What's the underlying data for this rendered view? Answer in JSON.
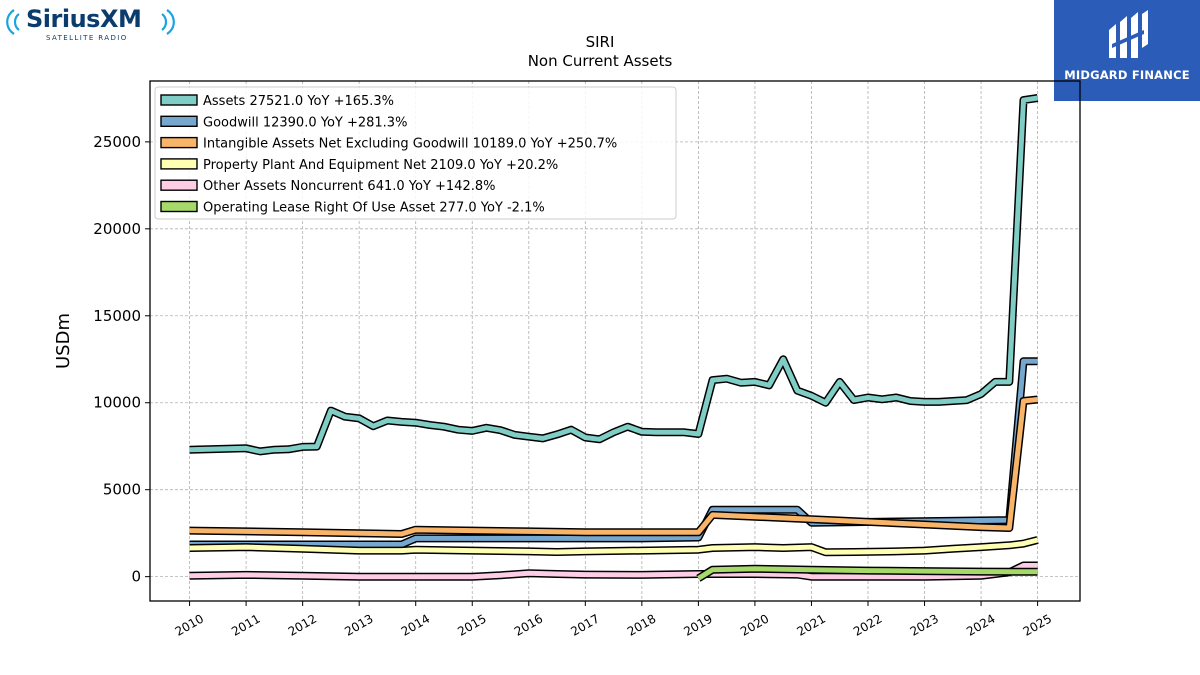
{
  "logos": {
    "left": {
      "brand": "SiriusXM",
      "tagline": "SATELLITE RADIO",
      "color": "#0a3d6e",
      "wave_color": "#1aa3e0"
    },
    "right": {
      "name": "MIDGARD FINANCE",
      "bg_color": "#2b5cb8"
    }
  },
  "chart_data": {
    "type": "line",
    "title": "SIRI",
    "subtitle": "Non Current  Assets",
    "ylabel": "USDm",
    "xlabel": "",
    "ylim": [
      -1400,
      28500
    ],
    "xlim": [
      2009.3,
      2025.75
    ],
    "x_ticks": [
      2010,
      2011,
      2012,
      2013,
      2014,
      2015,
      2016,
      2017,
      2018,
      2019,
      2020,
      2021,
      2022,
      2023,
      2024,
      2025
    ],
    "y_ticks": [
      0,
      5000,
      10000,
      15000,
      20000,
      25000
    ],
    "grid": true,
    "legend_placement": "upper-left",
    "series": [
      {
        "name": "Assets",
        "legend_label": "Assets  27521.0 YoY +165.3%",
        "color": "#7fcdc4",
        "points": [
          [
            2010.0,
            7300
          ],
          [
            2011.0,
            7380
          ],
          [
            2011.25,
            7200
          ],
          [
            2011.5,
            7300
          ],
          [
            2011.75,
            7320
          ],
          [
            2012.0,
            7460
          ],
          [
            2012.25,
            7480
          ],
          [
            2012.5,
            9550
          ],
          [
            2012.75,
            9200
          ],
          [
            2013.0,
            9100
          ],
          [
            2013.25,
            8650
          ],
          [
            2013.5,
            8980
          ],
          [
            2013.75,
            8900
          ],
          [
            2014.0,
            8850
          ],
          [
            2014.25,
            8720
          ],
          [
            2014.5,
            8620
          ],
          [
            2014.75,
            8450
          ],
          [
            2015.0,
            8380
          ],
          [
            2015.25,
            8560
          ],
          [
            2015.5,
            8420
          ],
          [
            2015.75,
            8150
          ],
          [
            2016.0,
            8050
          ],
          [
            2016.25,
            7950
          ],
          [
            2016.5,
            8180
          ],
          [
            2016.75,
            8450
          ],
          [
            2017.0,
            8000
          ],
          [
            2017.25,
            7900
          ],
          [
            2017.5,
            8300
          ],
          [
            2017.75,
            8620
          ],
          [
            2018.0,
            8330
          ],
          [
            2018.25,
            8300
          ],
          [
            2018.5,
            8300
          ],
          [
            2018.75,
            8300
          ],
          [
            2019.0,
            8200
          ],
          [
            2019.25,
            11300
          ],
          [
            2019.5,
            11380
          ],
          [
            2019.75,
            11150
          ],
          [
            2020.0,
            11200
          ],
          [
            2020.25,
            11000
          ],
          [
            2020.5,
            12500
          ],
          [
            2020.75,
            10700
          ],
          [
            2021.0,
            10400
          ],
          [
            2021.25,
            10000
          ],
          [
            2021.5,
            11200
          ],
          [
            2021.75,
            10150
          ],
          [
            2022.0,
            10300
          ],
          [
            2022.25,
            10200
          ],
          [
            2022.5,
            10300
          ],
          [
            2022.75,
            10100
          ],
          [
            2023.0,
            10050
          ],
          [
            2023.25,
            10050
          ],
          [
            2023.5,
            10100
          ],
          [
            2023.75,
            10150
          ],
          [
            2024.0,
            10500
          ],
          [
            2024.25,
            11200
          ],
          [
            2024.5,
            11200
          ],
          [
            2024.75,
            27400
          ],
          [
            2025.0,
            27521
          ]
        ]
      },
      {
        "name": "Goodwill",
        "legend_label": "Goodwill  12390.0 YoY +281.3%",
        "color": "#75a7cf",
        "points": [
          [
            2010.0,
            1850
          ],
          [
            2013.75,
            1850
          ],
          [
            2014.0,
            2200
          ],
          [
            2016.0,
            2200
          ],
          [
            2018.0,
            2200
          ],
          [
            2019.0,
            2250
          ],
          [
            2019.25,
            3850
          ],
          [
            2020.75,
            3850
          ],
          [
            2021.0,
            3100
          ],
          [
            2024.5,
            3250
          ],
          [
            2024.75,
            12390
          ],
          [
            2025.0,
            12390
          ]
        ]
      },
      {
        "name": "Intangible Assets Net Excluding Goodwill",
        "legend_label": "Intangible Assets Net Excluding Goodwill  10189.0 YoY +250.7%",
        "color": "#f8b468",
        "points": [
          [
            2010.0,
            2650
          ],
          [
            2011.0,
            2600
          ],
          [
            2012.0,
            2550
          ],
          [
            2013.0,
            2500
          ],
          [
            2013.75,
            2450
          ],
          [
            2014.0,
            2700
          ],
          [
            2015.0,
            2650
          ],
          [
            2016.0,
            2600
          ],
          [
            2017.0,
            2550
          ],
          [
            2018.0,
            2550
          ],
          [
            2019.0,
            2550
          ],
          [
            2019.25,
            3550
          ],
          [
            2020.0,
            3450
          ],
          [
            2021.0,
            3300
          ],
          [
            2022.0,
            3150
          ],
          [
            2023.0,
            3000
          ],
          [
            2024.0,
            2850
          ],
          [
            2024.5,
            2800
          ],
          [
            2024.75,
            10100
          ],
          [
            2025.0,
            10189
          ]
        ]
      },
      {
        "name": "Property Plant And Equipment Net",
        "legend_label": "Property Plant And Equipment Net  2109.0 YoY +20.2%",
        "color": "#feffb3",
        "points": [
          [
            2010.0,
            1650
          ],
          [
            2011.0,
            1700
          ],
          [
            2012.0,
            1600
          ],
          [
            2013.0,
            1500
          ],
          [
            2013.75,
            1500
          ],
          [
            2014.0,
            1550
          ],
          [
            2015.0,
            1500
          ],
          [
            2016.0,
            1450
          ],
          [
            2016.5,
            1420
          ],
          [
            2017.0,
            1450
          ],
          [
            2018.0,
            1500
          ],
          [
            2019.0,
            1550
          ],
          [
            2019.25,
            1650
          ],
          [
            2020.0,
            1700
          ],
          [
            2020.5,
            1650
          ],
          [
            2021.0,
            1700
          ],
          [
            2021.25,
            1400
          ],
          [
            2021.75,
            1420
          ],
          [
            2022.5,
            1450
          ],
          [
            2023.0,
            1500
          ],
          [
            2023.5,
            1600
          ],
          [
            2024.0,
            1700
          ],
          [
            2024.5,
            1800
          ],
          [
            2024.75,
            1900
          ],
          [
            2025.0,
            2109
          ]
        ]
      },
      {
        "name": "Other Assets Noncurrent",
        "legend_label": "Other Assets Noncurrent  641.0 YoY +142.8%",
        "color": "#fccde5",
        "points": [
          [
            2010.0,
            50
          ],
          [
            2011.0,
            100
          ],
          [
            2012.0,
            50
          ],
          [
            2013.0,
            0
          ],
          [
            2014.0,
            0
          ],
          [
            2015.0,
            0
          ],
          [
            2015.5,
            80
          ],
          [
            2016.0,
            200
          ],
          [
            2016.5,
            150
          ],
          [
            2017.0,
            120
          ],
          [
            2018.0,
            100
          ],
          [
            2019.0,
            150
          ],
          [
            2020.0,
            150
          ],
          [
            2020.75,
            120
          ],
          [
            2021.0,
            0
          ],
          [
            2022.0,
            0
          ],
          [
            2023.0,
            0
          ],
          [
            2024.0,
            50
          ],
          [
            2024.5,
            250
          ],
          [
            2024.75,
            641
          ],
          [
            2025.0,
            641
          ]
        ]
      },
      {
        "name": "Operating Lease Right Of Use Asset",
        "legend_label": "Operating Lease Right Of Use Asset  277.0 YoY -2.1%",
        "color": "#a6d96a",
        "points": [
          [
            2019.0,
            -100
          ],
          [
            2019.25,
            400
          ],
          [
            2020.0,
            450
          ],
          [
            2021.0,
            400
          ],
          [
            2022.0,
            350
          ],
          [
            2023.0,
            320
          ],
          [
            2024.0,
            290
          ],
          [
            2025.0,
            277
          ]
        ]
      }
    ]
  }
}
